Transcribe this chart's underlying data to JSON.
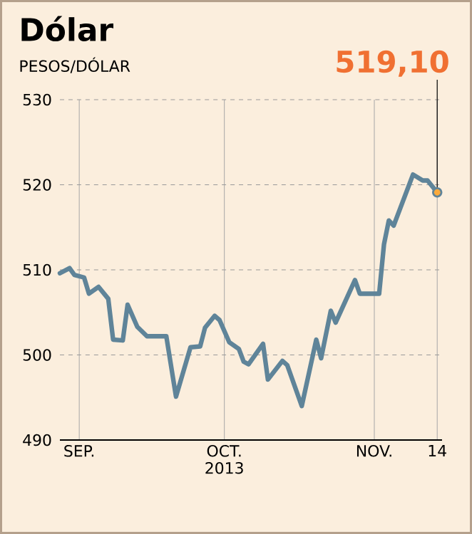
{
  "chart_data": {
    "type": "line",
    "title": "Dólar",
    "subtitle": "PESOS/DÓLAR",
    "x": [
      "2013-08-28",
      "2013-08-30",
      "2013-08-31",
      "2013-09-02",
      "2013-09-03",
      "2013-09-05",
      "2013-09-07",
      "2013-09-08",
      "2013-09-10",
      "2013-09-11",
      "2013-09-13",
      "2013-09-15",
      "2013-09-19",
      "2013-09-21",
      "2013-09-24",
      "2013-09-26",
      "2013-09-27",
      "2013-09-29",
      "2013-09-30",
      "2013-10-02",
      "2013-10-04",
      "2013-10-05",
      "2013-10-06",
      "2013-10-09",
      "2013-10-10",
      "2013-10-13",
      "2013-10-14",
      "2013-10-17",
      "2013-10-20",
      "2013-10-21",
      "2013-10-23",
      "2013-10-24",
      "2013-10-28",
      "2013-10-29",
      "2013-11-02",
      "2013-11-03",
      "2013-11-04",
      "2013-11-05",
      "2013-11-09",
      "2013-11-11",
      "2013-11-12",
      "2013-11-14"
    ],
    "series": [
      {
        "color": "#5f8499",
        "values": [
          509.6,
          510.2,
          509.4,
          509.1,
          507.2,
          508.0,
          506.6,
          501.8,
          501.7,
          505.9,
          503.3,
          502.2,
          502.2,
          495.1,
          500.9,
          501.0,
          503.2,
          504.6,
          504.1,
          501.5,
          500.7,
          499.2,
          498.9,
          501.3,
          497.1,
          499.3,
          498.8,
          494.0,
          501.8,
          499.6,
          505.2,
          503.8,
          508.8,
          507.2,
          507.2,
          513.0,
          515.8,
          515.2,
          521.2,
          520.5,
          520.5,
          519.1
        ]
      }
    ],
    "xlim": [
      "2013-08-28",
      "2013-11-15"
    ],
    "ylim": [
      490,
      530
    ],
    "xticks": [
      {
        "value": "2013-09-01",
        "label": "SEP."
      },
      {
        "value": "2013-10-01",
        "label": "OCT. 2013"
      },
      {
        "value": "2013-11-01",
        "label": "NOV."
      },
      {
        "value": "2013-11-14",
        "label": "14"
      }
    ],
    "yticks": [
      490,
      500,
      510,
      520,
      530
    ],
    "grid": true,
    "annotations": [
      {
        "text": "519,10",
        "x": "2013-11-14",
        "y": 519.1
      }
    ]
  }
}
